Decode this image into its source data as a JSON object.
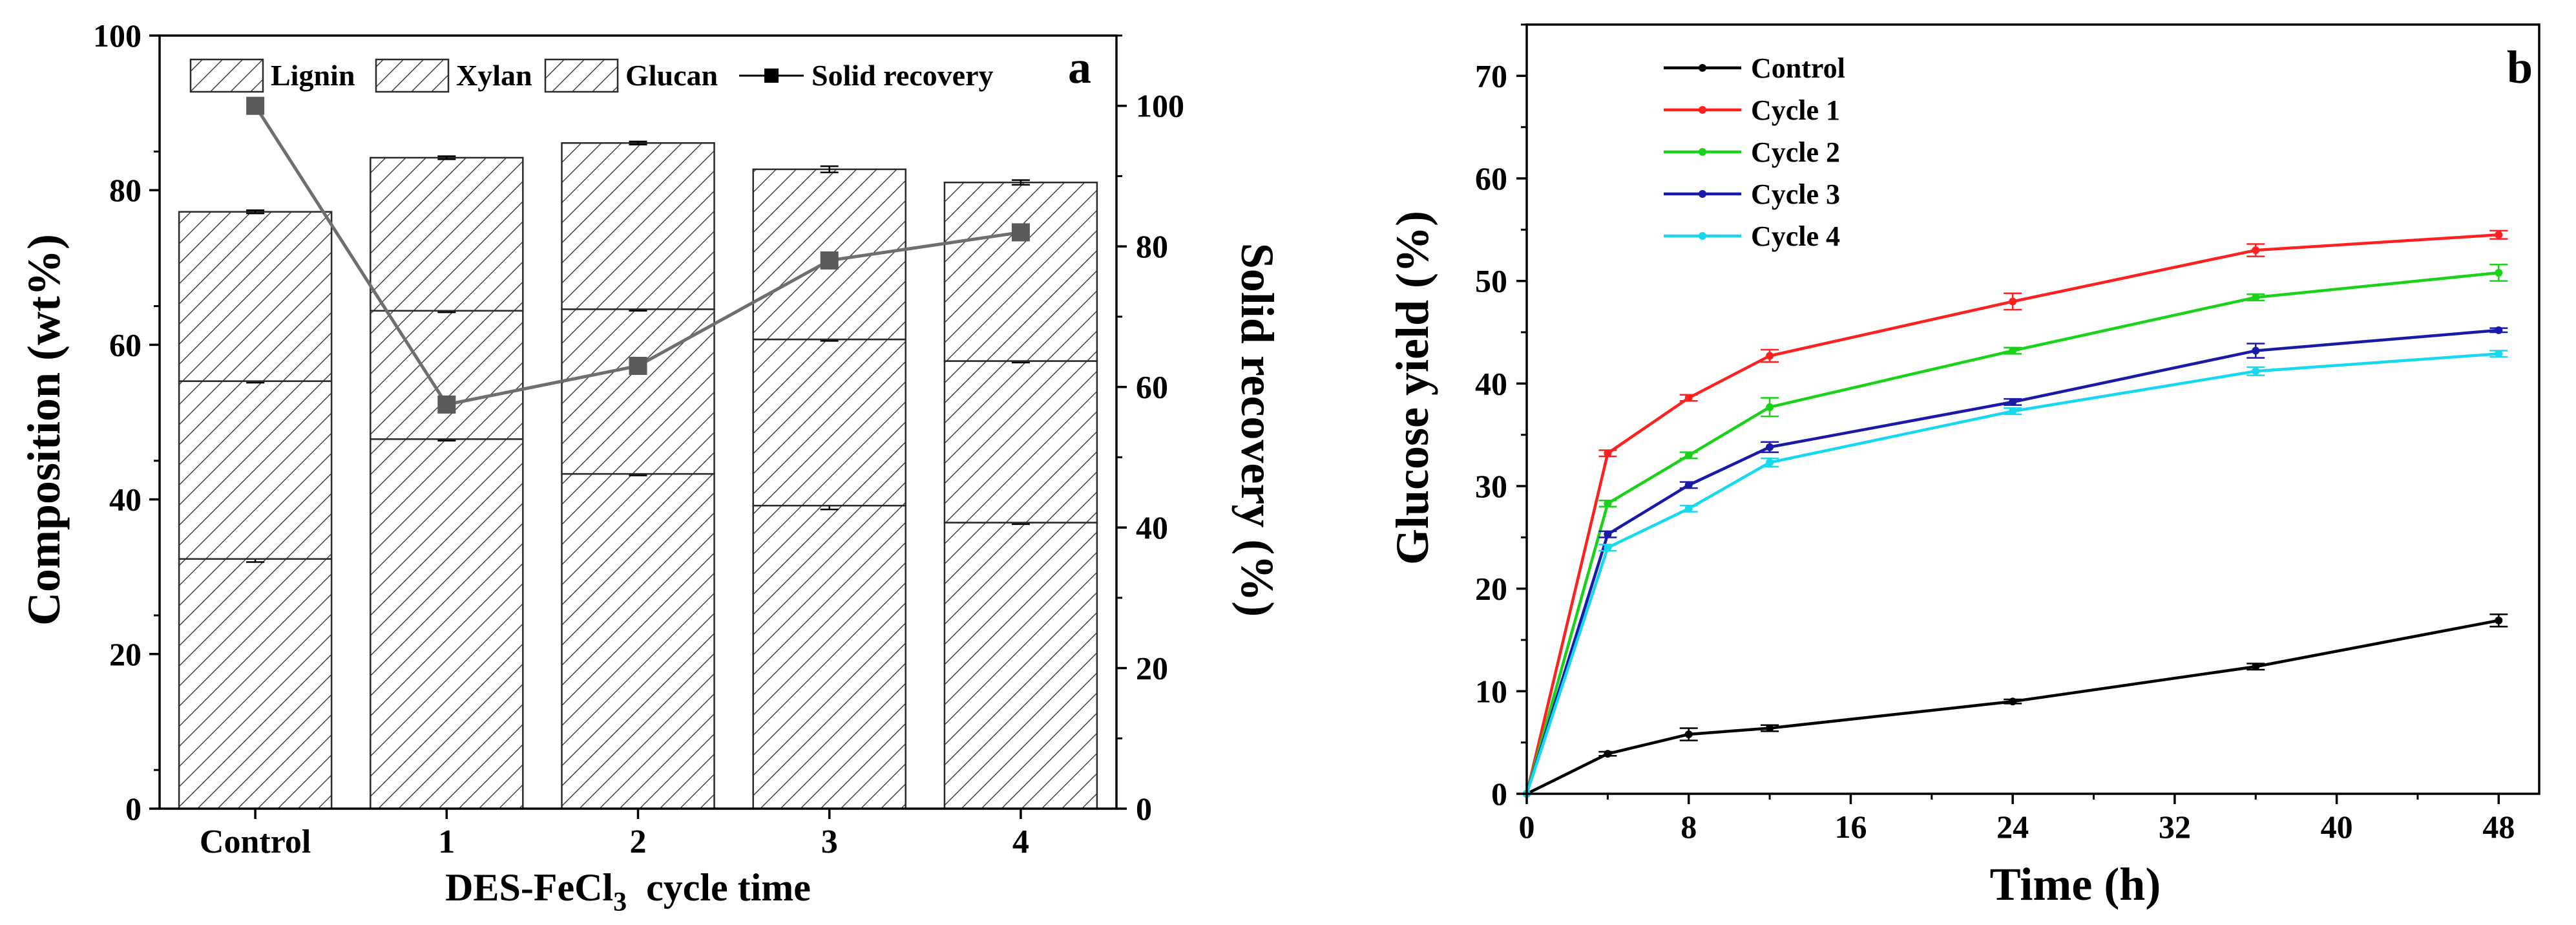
{
  "chart_data": [
    {
      "panel": "a",
      "type": "bar",
      "stacked": true,
      "categories": [
        "Control",
        "1",
        "2",
        "3",
        "4"
      ],
      "xlabel": "DES-FeCl3 cycle time",
      "xlabel_parts": {
        "main": "DES-FeCl",
        "sub": "3",
        "tail": "  cycle time"
      },
      "ylabel": "Composition (wt%)",
      "ylim": [
        0,
        100
      ],
      "yticks": [
        0,
        20,
        40,
        60,
        80,
        100
      ],
      "y2label": "Solid recovery (%)",
      "y2lim": [
        0,
        110
      ],
      "y2ticks": [
        0,
        20,
        40,
        60,
        80,
        100
      ],
      "series": [
        {
          "name": "Glucan",
          "values": [
            32.3,
            47.8,
            43.3,
            39.2,
            37.0
          ],
          "errors": [
            0.4,
            0.2,
            0.2,
            0.5,
            0.2
          ]
        },
        {
          "name": "Xylan",
          "values": [
            23.0,
            16.6,
            21.3,
            21.5,
            20.9
          ],
          "errors": [
            0.2,
            0.2,
            0.2,
            0.2,
            0.2
          ]
        },
        {
          "name": "Lignin",
          "values": [
            21.9,
            19.8,
            21.5,
            22.0,
            23.1
          ],
          "errors": [
            0.2,
            0.2,
            0.2,
            0.4,
            0.3
          ]
        }
      ],
      "line_series": {
        "name": "Solid recovery",
        "values": [
          100.0,
          57.5,
          63.0,
          78.0,
          82.0
        ],
        "color": "#6e6e6e"
      },
      "legend": [
        "Lignin",
        "Xylan",
        "Glucan",
        "Solid recovery"
      ]
    },
    {
      "panel": "b",
      "type": "line",
      "x": [
        0,
        4,
        8,
        12,
        24,
        36,
        48
      ],
      "xlabel": "Time (h)",
      "ylabel": "Glucose yield (%)",
      "xlim": [
        0,
        50
      ],
      "xticks": [
        0,
        8,
        16,
        24,
        32,
        40,
        48
      ],
      "ylim": [
        0,
        75
      ],
      "yticks": [
        0,
        10,
        20,
        30,
        40,
        50,
        60,
        70
      ],
      "series": [
        {
          "name": "Control",
          "color": "#000000",
          "values": [
            0,
            3.9,
            5.8,
            6.4,
            9.0,
            12.4,
            16.9
          ],
          "errors": [
            0,
            0.2,
            0.6,
            0.3,
            0.2,
            0.3,
            0.6
          ]
        },
        {
          "name": "Cycle 1",
          "color": "#ff2020",
          "values": [
            0,
            33.2,
            38.6,
            42.7,
            48.0,
            53.0,
            54.5
          ],
          "errors": [
            0,
            0.3,
            0.3,
            0.6,
            0.8,
            0.6,
            0.4
          ]
        },
        {
          "name": "Cycle 2",
          "color": "#19d219",
          "values": [
            0,
            28.3,
            33.0,
            37.7,
            43.2,
            48.4,
            50.8
          ],
          "errors": [
            0,
            0.3,
            0.3,
            0.9,
            0.3,
            0.3,
            0.8
          ]
        },
        {
          "name": "Cycle 3",
          "color": "#1a1aa8",
          "values": [
            0,
            25.3,
            30.1,
            33.8,
            38.2,
            43.2,
            45.2
          ],
          "errors": [
            0,
            0.3,
            0.3,
            0.5,
            0.3,
            0.7,
            0.2
          ]
        },
        {
          "name": "Cycle 4",
          "color": "#18d8f0",
          "values": [
            0,
            24.0,
            27.8,
            32.3,
            37.3,
            41.2,
            42.9
          ],
          "errors": [
            0,
            0.3,
            0.3,
            0.4,
            0.3,
            0.4,
            0.3
          ]
        }
      ]
    }
  ],
  "labels": {
    "panel_a": "a",
    "panel_b": "b"
  }
}
